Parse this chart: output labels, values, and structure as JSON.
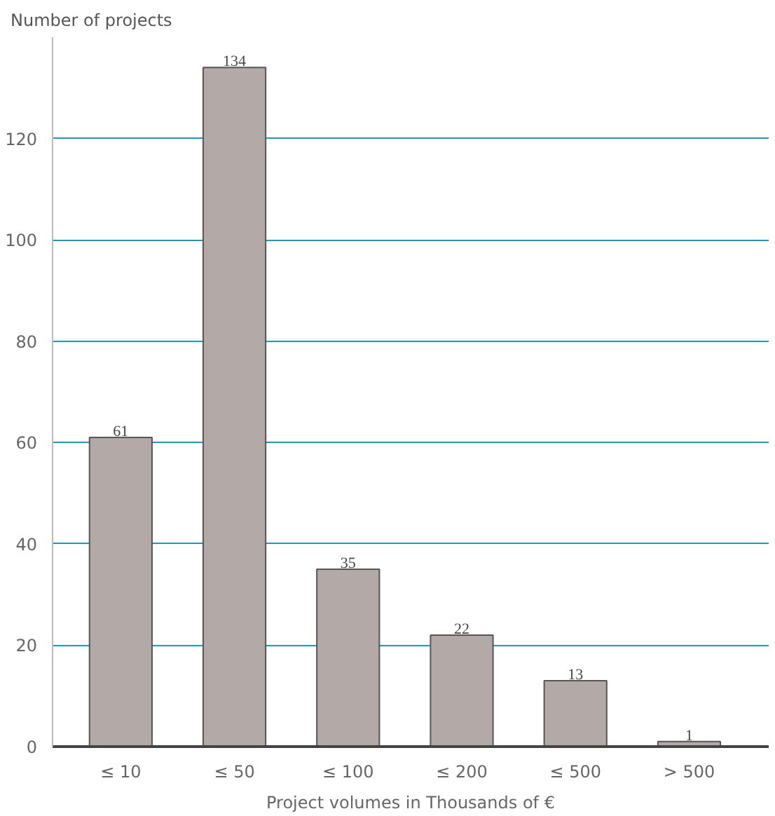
{
  "chart_data": {
    "type": "bar",
    "ylabel": "Number of projects",
    "xlabel": "Project volumes in Thousands of €",
    "categories": [
      "≤ 10",
      "≤ 50",
      "≤ 100",
      "≤ 200",
      "≤ 500",
      "> 500"
    ],
    "values": [
      61,
      134,
      35,
      22,
      13,
      1
    ],
    "color": "#b3aaa8",
    "data_labels": true,
    "ylim": [
      0,
      140
    ],
    "yticks": [
      0,
      20,
      40,
      60,
      80,
      100,
      120
    ],
    "grid": "y"
  }
}
